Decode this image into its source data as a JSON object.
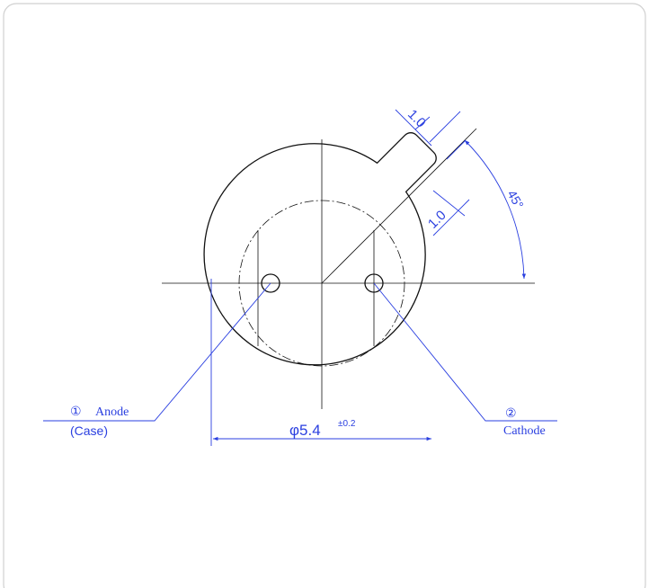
{
  "drawing": {
    "dimensions": {
      "tab_width": "1.0",
      "tab_length": "1.0",
      "angle": "45°",
      "diameter": "φ5.4",
      "tolerance": "±0.2"
    },
    "pins": [
      {
        "number": "①",
        "label": "Anode",
        "sublabel": "(Case)"
      },
      {
        "number": "②",
        "label": "Cathode"
      }
    ]
  }
}
